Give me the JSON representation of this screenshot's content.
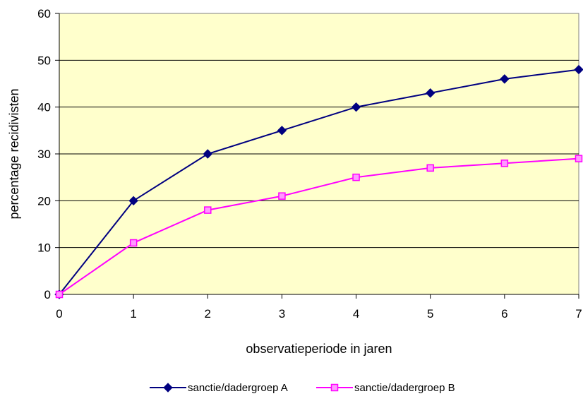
{
  "chart_data": {
    "type": "line",
    "title": "",
    "xlabel": "observatieperiode in jaren",
    "ylabel": "percentage recidivisten",
    "x": [
      0,
      1,
      2,
      3,
      4,
      5,
      6,
      7
    ],
    "xlim": [
      0,
      7
    ],
    "ylim": [
      0,
      60
    ],
    "x_ticks": [
      "0",
      "1",
      "2",
      "3",
      "4",
      "5",
      "6",
      "7"
    ],
    "y_ticks": [
      "0",
      "10",
      "20",
      "30",
      "40",
      "50",
      "60"
    ],
    "grid": "horizontal",
    "plot_background": "#FFFFCC",
    "legend_position": "bottom",
    "series": [
      {
        "name": "sanctie/dadergroep A",
        "values": [
          0,
          20,
          30,
          35,
          40,
          43,
          46,
          48
        ],
        "color": "#000080",
        "marker": "diamond"
      },
      {
        "name": "sanctie/dadergroep B",
        "values": [
          0,
          11,
          18,
          21,
          25,
          27,
          28,
          29
        ],
        "color": "#FF00FF",
        "marker": "square"
      }
    ]
  }
}
